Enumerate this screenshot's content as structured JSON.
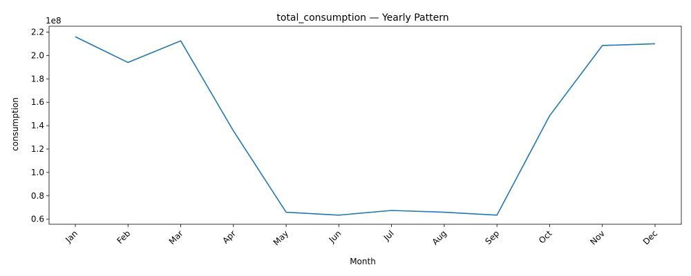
{
  "chart_data": {
    "type": "line",
    "title": "total_consumption — Yearly Pattern",
    "xlabel": "Month",
    "ylabel": "consumption",
    "y_scale_text": "1e8",
    "y_scale": 100000000,
    "categories": [
      "Jan",
      "Feb",
      "Mar",
      "Apr",
      "May",
      "Jun",
      "Jul",
      "Aug",
      "Sep",
      "Oct",
      "Nov",
      "Dec"
    ],
    "series": [
      {
        "values": [
          216000000,
          194000000,
          212500000,
          135500000,
          66000000,
          63500000,
          67500000,
          66000000,
          63500000,
          148500000,
          208500000,
          210000000
        ],
        "color": "#1f77b4"
      }
    ],
    "ylim": [
      55700000,
      225000000
    ],
    "yticks": [
      60000000,
      80000000,
      100000000,
      120000000,
      140000000,
      160000000,
      180000000,
      200000000,
      220000000
    ],
    "ytick_labels": [
      "0.6",
      "0.8",
      "1.0",
      "1.2",
      "1.4",
      "1.6",
      "1.8",
      "2.0",
      "2.2"
    ],
    "grid": false,
    "legend": "none"
  }
}
